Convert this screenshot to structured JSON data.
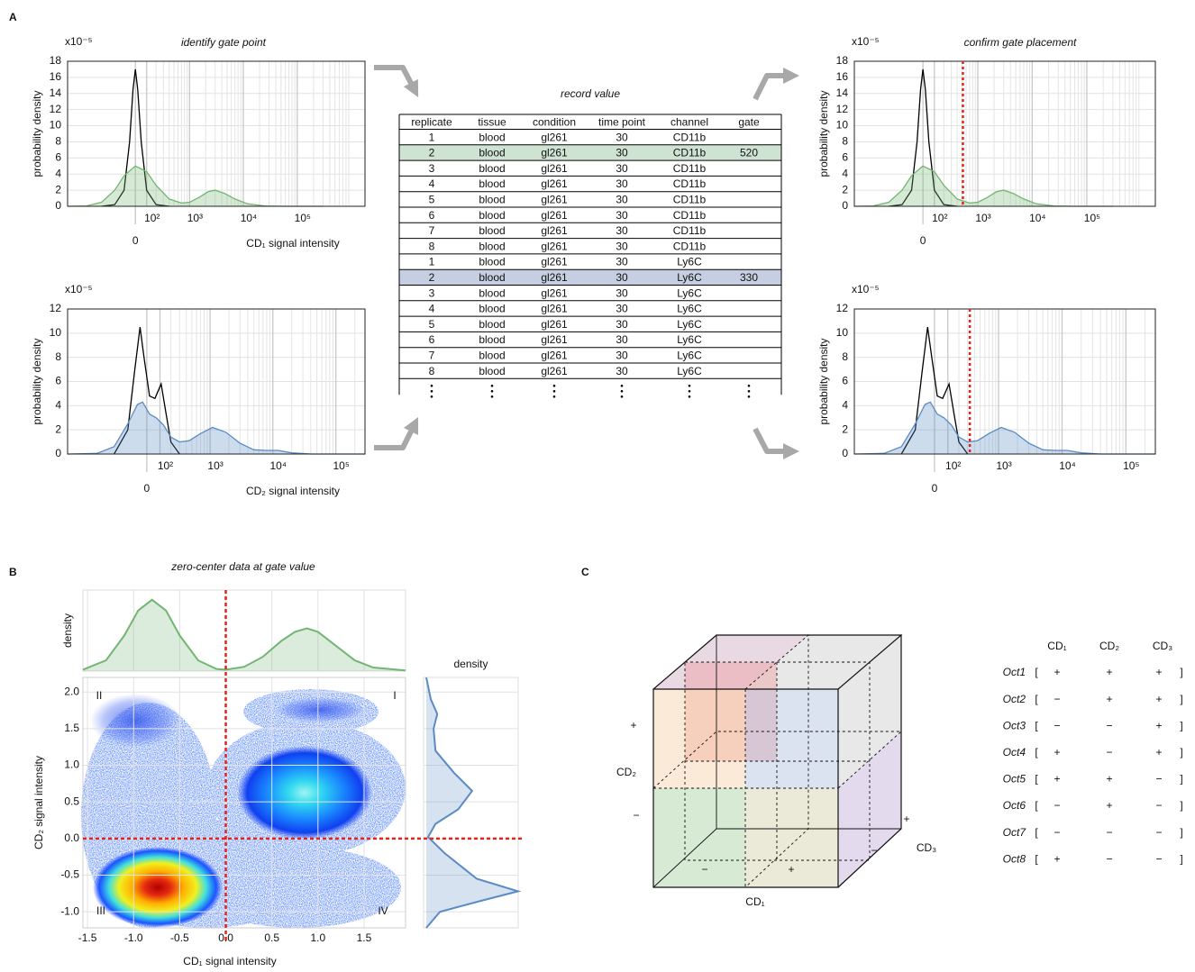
{
  "panel_labels": [
    "A",
    "B",
    "C"
  ],
  "chart_data": [
    {
      "type": "density",
      "title": "identify gate point",
      "multiplier": "x10⁻⁵",
      "ylabel": "probability density",
      "xlabel": "CD₁ signal intensity",
      "xlabel_color": "#73b572",
      "xscale": "asinh",
      "xlim": [
        -1800,
        1800000
      ],
      "xticks": [
        0,
        {
          "value": 100,
          "label": "10²"
        },
        {
          "value": 1000,
          "label": "10³"
        },
        {
          "value": 10000,
          "label": "10⁴"
        },
        {
          "value": 100000,
          "label": "10⁵"
        }
      ],
      "ylim": [
        0,
        18
      ],
      "yticks": [
        0,
        2,
        4,
        6,
        8,
        10,
        12,
        14,
        16,
        18
      ],
      "grid": true,
      "series": [
        {
          "color": "#000000",
          "fill": false,
          "x": [
            -400,
            -200,
            -100,
            -50,
            -20,
            0,
            20,
            50,
            100,
            200,
            400
          ],
          "values": [
            0,
            0.2,
            2,
            8,
            14.5,
            17,
            14.5,
            8,
            2,
            0.2,
            0
          ]
        },
        {
          "color": "#73b572",
          "fill": true,
          "x": [
            -1800,
            -800,
            -400,
            -200,
            -100,
            0,
            100,
            200,
            400,
            700,
            1000,
            1500,
            2200,
            3000,
            4500,
            7000,
            12000,
            25000,
            60000,
            300000
          ],
          "values": [
            0,
            0.05,
            0.5,
            2,
            3.8,
            5,
            4.3,
            2.6,
            0.9,
            0.4,
            0.5,
            1.1,
            1.8,
            2,
            1.6,
            0.9,
            0.3,
            0.05,
            0,
            0
          ]
        }
      ]
    },
    {
      "type": "density",
      "title": "confirm gate placement",
      "multiplier": "x10⁻⁵",
      "ylabel": "probability density",
      "xscale": "asinh",
      "xlim": [
        -1800,
        1800000
      ],
      "xticks": [
        0,
        {
          "value": 100,
          "label": "10²"
        },
        {
          "value": 1000,
          "label": "10³"
        },
        {
          "value": 10000,
          "label": "10⁴"
        },
        {
          "value": 100000,
          "label": "10⁵"
        }
      ],
      "ylim": [
        0,
        18
      ],
      "yticks": [
        0,
        2,
        4,
        6,
        8,
        10,
        12,
        14,
        16,
        18
      ],
      "grid": true,
      "gate": 520,
      "gate_color": "#e0261c",
      "series": [
        {
          "color": "#000000",
          "fill": false,
          "x": [
            -400,
            -200,
            -100,
            -50,
            -20,
            0,
            20,
            50,
            100,
            200,
            400
          ],
          "values": [
            0,
            0.2,
            2,
            8,
            14.5,
            17,
            14.5,
            8,
            2,
            0.2,
            0
          ]
        },
        {
          "color": "#73b572",
          "fill": true,
          "x": [
            -1800,
            -800,
            -400,
            -200,
            -100,
            0,
            100,
            200,
            400,
            700,
            1000,
            1500,
            2200,
            3000,
            4500,
            7000,
            12000,
            25000,
            60000,
            300000
          ],
          "values": [
            0,
            0.05,
            0.5,
            2,
            3.8,
            5,
            4.3,
            2.6,
            0.9,
            0.4,
            0.5,
            1.1,
            1.8,
            2,
            1.6,
            0.9,
            0.3,
            0.05,
            0,
            0
          ]
        }
      ]
    },
    {
      "type": "density",
      "multiplier": "x10⁻⁵",
      "ylabel": "probability density",
      "xlabel": "CD₂ signal intensity",
      "xlabel_color": "#5a8bc4",
      "xscale": "asinh",
      "xlim": [
        -1800,
        290000
      ],
      "xticks": [
        0,
        {
          "value": 100,
          "label": "10²"
        },
        {
          "value": 1000,
          "label": "10³"
        },
        {
          "value": 10000,
          "label": "10⁴"
        },
        {
          "value": 100000,
          "label": "10⁵"
        }
      ],
      "ylim": [
        0,
        12
      ],
      "yticks": [
        0,
        2,
        4,
        6,
        8,
        10,
        12
      ],
      "grid": true,
      "series": [
        {
          "color": "#000000",
          "fill": false,
          "x": [
            -300,
            -150,
            -90,
            -50,
            -20,
            20,
            60,
            110,
            150,
            200,
            300
          ],
          "values": [
            0,
            2,
            7,
            10.5,
            8,
            4.8,
            4.6,
            5.8,
            3.5,
            1,
            0
          ]
        },
        {
          "color": "#5a8bc4",
          "fill": true,
          "x": [
            -1800,
            -600,
            -300,
            -150,
            -70,
            -30,
            20,
            70,
            130,
            200,
            300,
            450,
            700,
            1100,
            1800,
            3000,
            5000,
            8000,
            12000,
            20000,
            40000,
            290000
          ],
          "values": [
            0,
            0.05,
            0.6,
            2.5,
            4.1,
            4.3,
            3.3,
            3,
            2.4,
            1.4,
            1,
            1.1,
            1.7,
            2.2,
            1.8,
            0.9,
            0.35,
            0.3,
            0.3,
            0.1,
            0,
            0
          ]
        }
      ]
    },
    {
      "type": "density",
      "multiplier": "x10⁻⁵",
      "ylabel": "probability density",
      "xscale": "asinh",
      "xlim": [
        -1800,
        290000
      ],
      "xticks": [
        0,
        {
          "value": 100,
          "label": "10²"
        },
        {
          "value": 1000,
          "label": "10³"
        },
        {
          "value": 10000,
          "label": "10⁴"
        },
        {
          "value": 100000,
          "label": "10⁵"
        }
      ],
      "ylim": [
        0,
        12
      ],
      "yticks": [
        0,
        2,
        4,
        6,
        8,
        10,
        12
      ],
      "grid": true,
      "gate": 330,
      "gate_color": "#e0261c",
      "series": [
        {
          "color": "#000000",
          "fill": false,
          "x": [
            -300,
            -150,
            -90,
            -50,
            -20,
            20,
            60,
            110,
            150,
            200,
            300
          ],
          "values": [
            0,
            2,
            7,
            10.5,
            8,
            4.8,
            4.6,
            5.8,
            3.5,
            1,
            0
          ]
        },
        {
          "color": "#5a8bc4",
          "fill": true,
          "x": [
            -1800,
            -600,
            -300,
            -150,
            -70,
            -30,
            20,
            70,
            130,
            200,
            300,
            450,
            700,
            1100,
            1800,
            3000,
            5000,
            8000,
            12000,
            20000,
            40000,
            290000
          ],
          "values": [
            0,
            0.05,
            0.6,
            2.5,
            4.1,
            4.3,
            3.3,
            3,
            2.4,
            1.4,
            1,
            1.1,
            1.7,
            2.2,
            1.8,
            0.9,
            0.35,
            0.3,
            0.3,
            0.1,
            0,
            0
          ]
        }
      ]
    },
    {
      "type": "scatter-density",
      "title": "zero-center data at gate value",
      "xlabel": "CD₁ signal intensity",
      "xlabel_color": "#73b572",
      "ylabel": "CD₂ signal intensity",
      "ylabel_color": "#5a8bc4",
      "xlim": [
        -1.55,
        1.95
      ],
      "xticks": [
        -1.5,
        {
          "value": -1,
          "label": "-1.0"
        },
        -0.5,
        {
          "value": 0,
          "label": "0.0"
        },
        0.5,
        {
          "value": 1,
          "label": "1.0"
        },
        1.5
      ],
      "ylim": [
        -1.22,
        2.2
      ],
      "yticks": [
        {
          "value": -1,
          "label": "-1.0"
        },
        -0.5,
        {
          "value": 0,
          "label": "0.0"
        },
        0.5,
        {
          "value": 1,
          "label": "1.0"
        },
        1.5,
        {
          "value": 2,
          "label": "2.0"
        }
      ],
      "grid": true,
      "gate_x": 0,
      "gate_y": 0,
      "gate_color": "#e0261c",
      "quadrant_labels": [
        "I",
        "II",
        "III",
        "IV"
      ],
      "top_density": {
        "ylabel": "density",
        "color": "#73b572",
        "x": [
          -1.55,
          -1.3,
          -1.1,
          -0.95,
          -0.8,
          -0.65,
          -0.5,
          -0.3,
          -0.1,
          0,
          0.2,
          0.4,
          0.6,
          0.75,
          0.88,
          1.0,
          1.2,
          1.4,
          1.6,
          1.95
        ],
        "values": [
          0.02,
          0.15,
          0.5,
          0.85,
          1,
          0.85,
          0.5,
          0.15,
          0.03,
          0.02,
          0.06,
          0.2,
          0.42,
          0.55,
          0.6,
          0.55,
          0.35,
          0.15,
          0.05,
          0.01
        ]
      },
      "right_density": {
        "title": "density",
        "color": "#5a8bc4",
        "y": [
          2.2,
          1.9,
          1.7,
          1.5,
          1.2,
          0.9,
          0.65,
          0.4,
          0.2,
          0.02,
          -0.2,
          -0.4,
          -0.55,
          -0.72,
          -0.85,
          -1.0,
          -1.22
        ],
        "values": [
          0,
          0.05,
          0.12,
          0.08,
          0.1,
          0.3,
          0.5,
          0.35,
          0.1,
          0.02,
          0.2,
          0.4,
          0.55,
          1.0,
          0.6,
          0.15,
          0
        ]
      }
    }
  ],
  "table": {
    "title": "record value",
    "columns": [
      "replicate",
      "tissue",
      "condition",
      "time point",
      "channel",
      "gate"
    ],
    "rows": [
      [
        1,
        "blood",
        "gl261",
        30,
        "CD11b",
        null
      ],
      [
        2,
        "blood",
        "gl261",
        30,
        "CD11b",
        520
      ],
      [
        3,
        "blood",
        "gl261",
        30,
        "CD11b",
        null
      ],
      [
        4,
        "blood",
        "gl261",
        30,
        "CD11b",
        null
      ],
      [
        5,
        "blood",
        "gl261",
        30,
        "CD11b",
        null
      ],
      [
        6,
        "blood",
        "gl261",
        30,
        "CD11b",
        null
      ],
      [
        7,
        "blood",
        "gl261",
        30,
        "CD11b",
        null
      ],
      [
        8,
        "blood",
        "gl261",
        30,
        "CD11b",
        null
      ],
      [
        1,
        "blood",
        "gl261",
        30,
        "Ly6C",
        null
      ],
      [
        2,
        "blood",
        "gl261",
        30,
        "Ly6C",
        330
      ],
      [
        3,
        "blood",
        "gl261",
        30,
        "Ly6C",
        null
      ],
      [
        4,
        "blood",
        "gl261",
        30,
        "Ly6C",
        null
      ],
      [
        5,
        "blood",
        "gl261",
        30,
        "Ly6C",
        null
      ],
      [
        6,
        "blood",
        "gl261",
        30,
        "Ly6C",
        null
      ],
      [
        7,
        "blood",
        "gl261",
        30,
        "Ly6C",
        null
      ],
      [
        8,
        "blood",
        "gl261",
        30,
        "Ly6C",
        null
      ]
    ],
    "highlight_rows": [
      {
        "row": 1,
        "color": "#cfe3d3"
      },
      {
        "row": 9,
        "color": "#c6cfe1"
      }
    ]
  },
  "cube": {
    "cd2_label": "CD₂",
    "cd2_plus": "+",
    "cd2_minus": "−",
    "cd1_label": "CD₁",
    "cd1_minus": "−",
    "cd1_plus": "+",
    "cd3_label": "CD₃",
    "cd3_plus": "+",
    "cd3_minus": "−"
  },
  "octants": {
    "header": [
      "CD₁",
      "CD₂",
      "CD₃"
    ],
    "rows": [
      {
        "name": "Oct1",
        "color": "#b9b9b9",
        "signs": [
          "+",
          "+",
          "+"
        ]
      },
      {
        "name": "Oct2",
        "color": "#b98aa6",
        "signs": [
          "−",
          "+",
          "+"
        ]
      },
      {
        "name": "Oct3",
        "color": "#f3bf85",
        "signs": [
          "−",
          "−",
          "+"
        ]
      },
      {
        "name": "Oct4",
        "color": "#8fa6cf",
        "signs": [
          "+",
          "−",
          "+"
        ]
      },
      {
        "name": "Oct5",
        "color": "#a78dc9",
        "signs": [
          "+",
          "+",
          "−"
        ]
      },
      {
        "name": "Oct6",
        "color": "#ef8585",
        "signs": [
          "−",
          "+",
          "−"
        ]
      },
      {
        "name": "Oct7",
        "color": "#7fbf79",
        "signs": [
          "−",
          "−",
          "−"
        ]
      },
      {
        "name": "Oct8",
        "color": "#c2bd86",
        "signs": [
          "+",
          "−",
          "−"
        ]
      }
    ]
  }
}
